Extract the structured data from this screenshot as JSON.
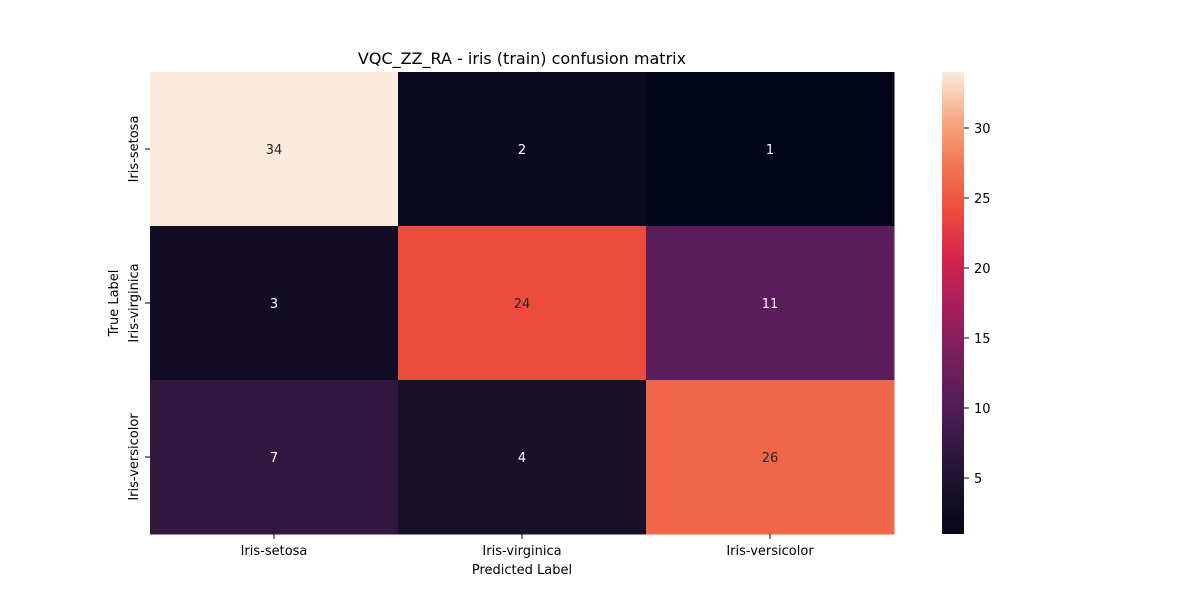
{
  "chart_data": {
    "type": "heatmap",
    "title": "VQC_ZZ_RA - iris (train) confusion matrix",
    "xlabel": "Predicted Label",
    "ylabel": "True Label",
    "x_categories": [
      "Iris-setosa",
      "Iris-virginica",
      "Iris-versicolor"
    ],
    "y_categories": [
      "Iris-setosa",
      "Iris-virginica",
      "Iris-versicolor"
    ],
    "values": [
      [
        34,
        2,
        1
      ],
      [
        3,
        24,
        11
      ],
      [
        7,
        4,
        26
      ]
    ],
    "colorbar": {
      "min": 1,
      "max": 34,
      "ticks": [
        5,
        10,
        15,
        20,
        25,
        30
      ],
      "colormap": "rocket"
    },
    "colors": {
      "annotation_light": "#ffffff",
      "annotation_dark": "#262626"
    }
  }
}
